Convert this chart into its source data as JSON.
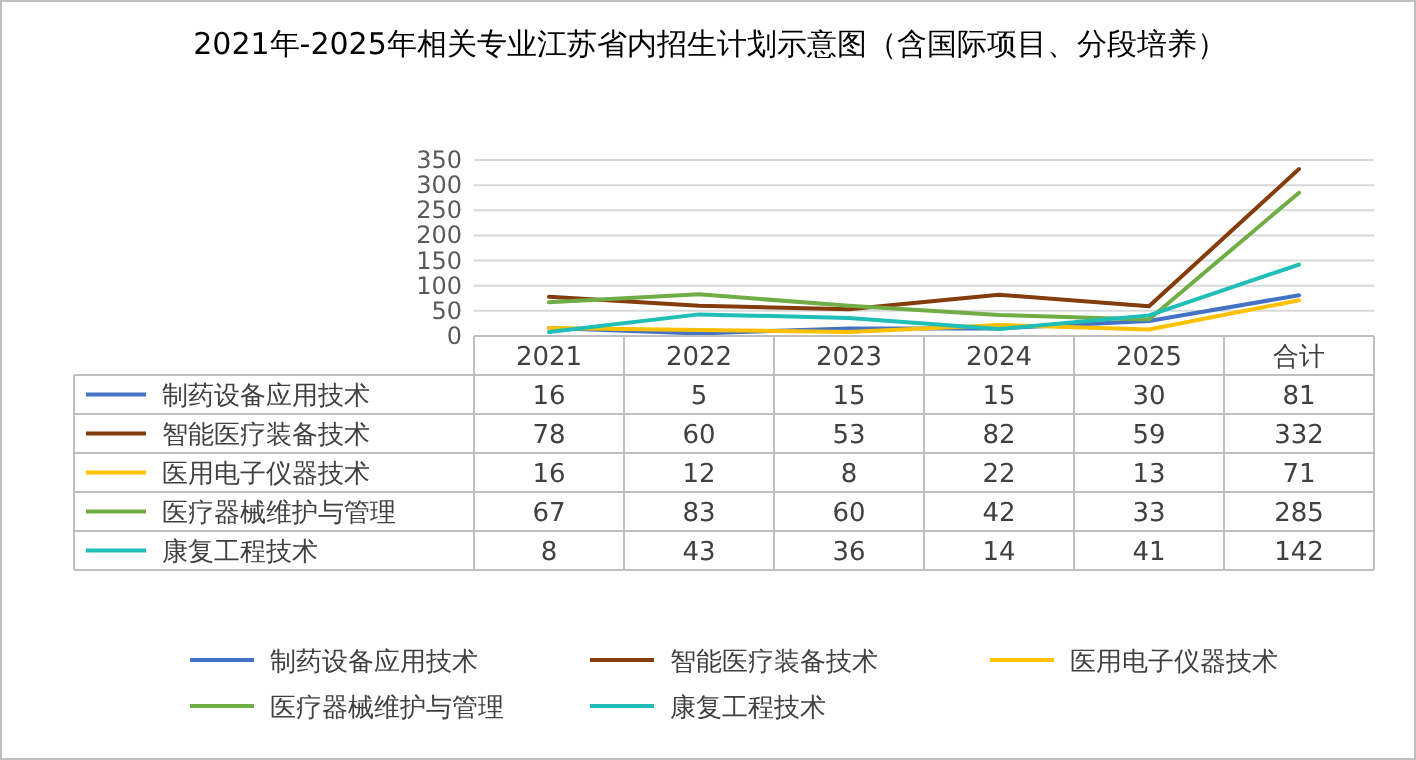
{
  "chart_data": {
    "type": "line",
    "title": "2021年-2025年相关专业江苏省内招生计划示意图（含国际项目、分段培养）",
    "categories": [
      "2021",
      "2022",
      "2023",
      "2024",
      "2025",
      "合计"
    ],
    "series": [
      {
        "name": "制药设备应用技术",
        "color": "#4472c4",
        "values": [
          16,
          5,
          15,
          15,
          30,
          81
        ]
      },
      {
        "name": "智能医疗装备技术",
        "color": "#843c0c",
        "values": [
          78,
          60,
          53,
          82,
          59,
          332
        ]
      },
      {
        "name": "医用电子仪器技术",
        "color": "#ffc000",
        "values": [
          16,
          12,
          8,
          22,
          13,
          71
        ]
      },
      {
        "name": "医疗器械维护与管理",
        "color": "#70ad47",
        "values": [
          67,
          83,
          60,
          42,
          33,
          285
        ]
      },
      {
        "name": "康复工程技术",
        "color": "#1fbfb8",
        "values": [
          8,
          43,
          36,
          14,
          41,
          142
        ]
      }
    ],
    "ylim": [
      0,
      350
    ],
    "yticks": [
      0,
      50,
      100,
      150,
      200,
      250,
      300,
      350
    ],
    "grid": "y",
    "data_labels": true,
    "legend": "bottom",
    "marker": "none",
    "line_style": "solid"
  }
}
